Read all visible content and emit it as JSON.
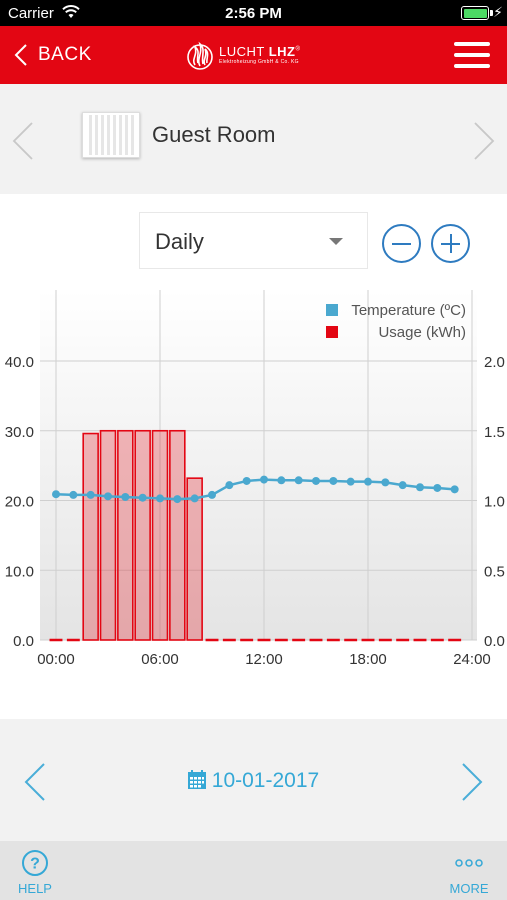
{
  "status_bar": {
    "carrier": "Carrier",
    "time": "2:56 PM",
    "charging": "⚡"
  },
  "header": {
    "back_label": "BACK",
    "logo": {
      "main_light": "LUCHT ",
      "main_bold": "LHZ",
      "registered": "®",
      "sub": "Elektroheizung GmbH & Co. KG"
    },
    "menu_icon": "hamburger-icon"
  },
  "room": {
    "name": "Guest Room",
    "icon": "radiator-icon"
  },
  "period": {
    "selected": "Daily"
  },
  "chart_data": {
    "type": "bar+line",
    "legend_position": "top-right",
    "grid": true,
    "x_ticks": [
      "00:00",
      "06:00",
      "12:00",
      "18:00",
      "24:00"
    ],
    "x_range": [
      0,
      24
    ],
    "y_left": {
      "range": [
        0,
        40
      ],
      "ticks": [
        "0.0",
        "10.0",
        "20.0",
        "30.0",
        "40.0"
      ]
    },
    "y_right": {
      "range": [
        0,
        2.0
      ],
      "ticks": [
        "0.0",
        "0.5",
        "1.0",
        "1.5",
        "2.0"
      ]
    },
    "series": [
      {
        "name": "Temperature (ºC)",
        "kind": "line",
        "axis": "left",
        "color": "#4aa8cf",
        "x": [
          0,
          1,
          2,
          3,
          4,
          5,
          6,
          7,
          8,
          9,
          10,
          11,
          12,
          13,
          14,
          15,
          16,
          17,
          18,
          19,
          20,
          21,
          22,
          23
        ],
        "values": [
          20.9,
          20.8,
          20.8,
          20.6,
          20.5,
          20.4,
          20.3,
          20.2,
          20.3,
          20.8,
          22.2,
          22.8,
          23.0,
          22.9,
          22.9,
          22.8,
          22.8,
          22.7,
          22.7,
          22.6,
          22.2,
          21.9,
          21.8,
          21.6
        ]
      },
      {
        "name": "Usage (kWh)",
        "kind": "bar",
        "axis": "right",
        "color": "#e30613",
        "x": [
          0,
          1,
          2,
          3,
          4,
          5,
          6,
          7,
          8,
          9,
          10,
          11,
          12,
          13,
          14,
          15,
          16,
          17,
          18,
          19,
          20,
          21,
          22,
          23
        ],
        "values": [
          0,
          0,
          1.48,
          1.5,
          1.5,
          1.5,
          1.5,
          1.5,
          1.16,
          0,
          0,
          0,
          0,
          0,
          0,
          0,
          0,
          0,
          0,
          0,
          0,
          0,
          0,
          0
        ]
      }
    ]
  },
  "date_nav": {
    "date": "10-01-2017"
  },
  "tabs": [
    {
      "id": "help",
      "label": "HELP"
    },
    {
      "id": "more",
      "label": "MORE"
    }
  ],
  "colors": {
    "brand_red": "#e30613",
    "accent_blue": "#35a8d6",
    "zoom_blue": "#2e7bc0"
  }
}
